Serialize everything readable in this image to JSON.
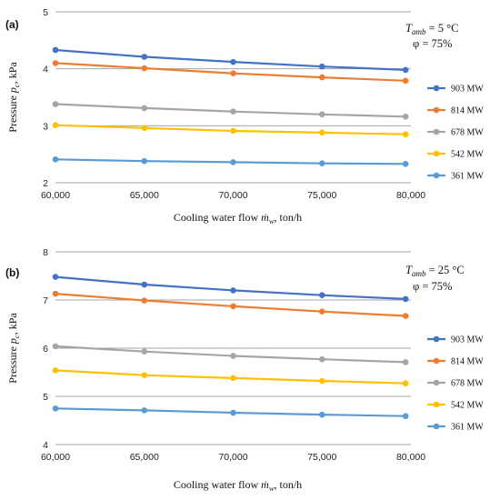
{
  "chart_data": [
    {
      "panel_label": "(a)",
      "type": "line",
      "conditions": {
        "t_symbol": "T",
        "t_subscript": "amb",
        "t_value": " = 5 °C",
        "phi": "φ  = 75%"
      },
      "xlabel": {
        "main": "Cooling water flow ",
        "symbol": "ṁ",
        "subscript": "w",
        "unit": ", ton/h"
      },
      "ylabel": {
        "main": "Pressure ",
        "symbol": "p",
        "subscript": "c",
        "unit": ", kPa"
      },
      "x": [
        60000,
        65000,
        70000,
        75000,
        79700
      ],
      "x_ticks": [
        "60,000",
        "65,000",
        "70,000",
        "75,000",
        "80,000"
      ],
      "x_tick_values": [
        60000,
        65000,
        70000,
        75000,
        80000
      ],
      "y_ticks": [
        "2",
        "3",
        "4",
        "5"
      ],
      "y_tick_values": [
        2,
        3,
        4,
        5
      ],
      "xlim": [
        60000,
        80000
      ],
      "ylim": [
        2,
        5
      ],
      "grid": "horizontal",
      "legend_position": "right",
      "series": [
        {
          "name": "903 MW",
          "color": "#4472c4",
          "values": [
            4.33,
            4.21,
            4.12,
            4.04,
            3.98
          ]
        },
        {
          "name": "814 MW",
          "color": "#ed7d31",
          "values": [
            4.1,
            4.01,
            3.92,
            3.85,
            3.79
          ]
        },
        {
          "name": "678 MW",
          "color": "#a5a5a5",
          "values": [
            3.38,
            3.31,
            3.25,
            3.2,
            3.16
          ]
        },
        {
          "name": "542 MW",
          "color": "#ffc000",
          "values": [
            3.01,
            2.96,
            2.91,
            2.88,
            2.85
          ]
        },
        {
          "name": "361 MW",
          "color": "#5b9bd5",
          "values": [
            2.41,
            2.38,
            2.36,
            2.34,
            2.33
          ]
        }
      ]
    },
    {
      "panel_label": "(b)",
      "type": "line",
      "conditions": {
        "t_symbol": "T",
        "t_subscript": "amb",
        "t_value": " = 25 °C",
        "phi": "φ  = 75%"
      },
      "xlabel": {
        "main": "Cooling water flow ",
        "symbol": "ṁ",
        "subscript": "w",
        "unit": ", ton/h"
      },
      "ylabel": {
        "main": "Pressure ",
        "symbol": "p",
        "subscript": "c",
        "unit": ", kPa"
      },
      "x": [
        60000,
        65000,
        70000,
        75000,
        79700
      ],
      "x_ticks": [
        "60,000",
        "65,000",
        "70,000",
        "75,000",
        "80,000"
      ],
      "x_tick_values": [
        60000,
        65000,
        70000,
        75000,
        80000
      ],
      "y_ticks": [
        "4",
        "5",
        "6",
        "7",
        "8"
      ],
      "y_tick_values": [
        4,
        5,
        6,
        7,
        8
      ],
      "xlim": [
        60000,
        80000
      ],
      "ylim": [
        4,
        8
      ],
      "grid": "horizontal",
      "legend_position": "right",
      "series": [
        {
          "name": "903 MW",
          "color": "#4472c4",
          "values": [
            7.48,
            7.32,
            7.2,
            7.1,
            7.02
          ]
        },
        {
          "name": "814 MW",
          "color": "#ed7d31",
          "values": [
            7.13,
            6.99,
            6.87,
            6.76,
            6.67
          ]
        },
        {
          "name": "678 MW",
          "color": "#a5a5a5",
          "values": [
            6.04,
            5.93,
            5.84,
            5.77,
            5.71
          ]
        },
        {
          "name": "542 MW",
          "color": "#ffc000",
          "values": [
            5.54,
            5.44,
            5.38,
            5.32,
            5.27
          ]
        },
        {
          "name": "361 MW",
          "color": "#5b9bd5",
          "values": [
            4.75,
            4.71,
            4.66,
            4.62,
            4.59
          ]
        }
      ]
    }
  ]
}
